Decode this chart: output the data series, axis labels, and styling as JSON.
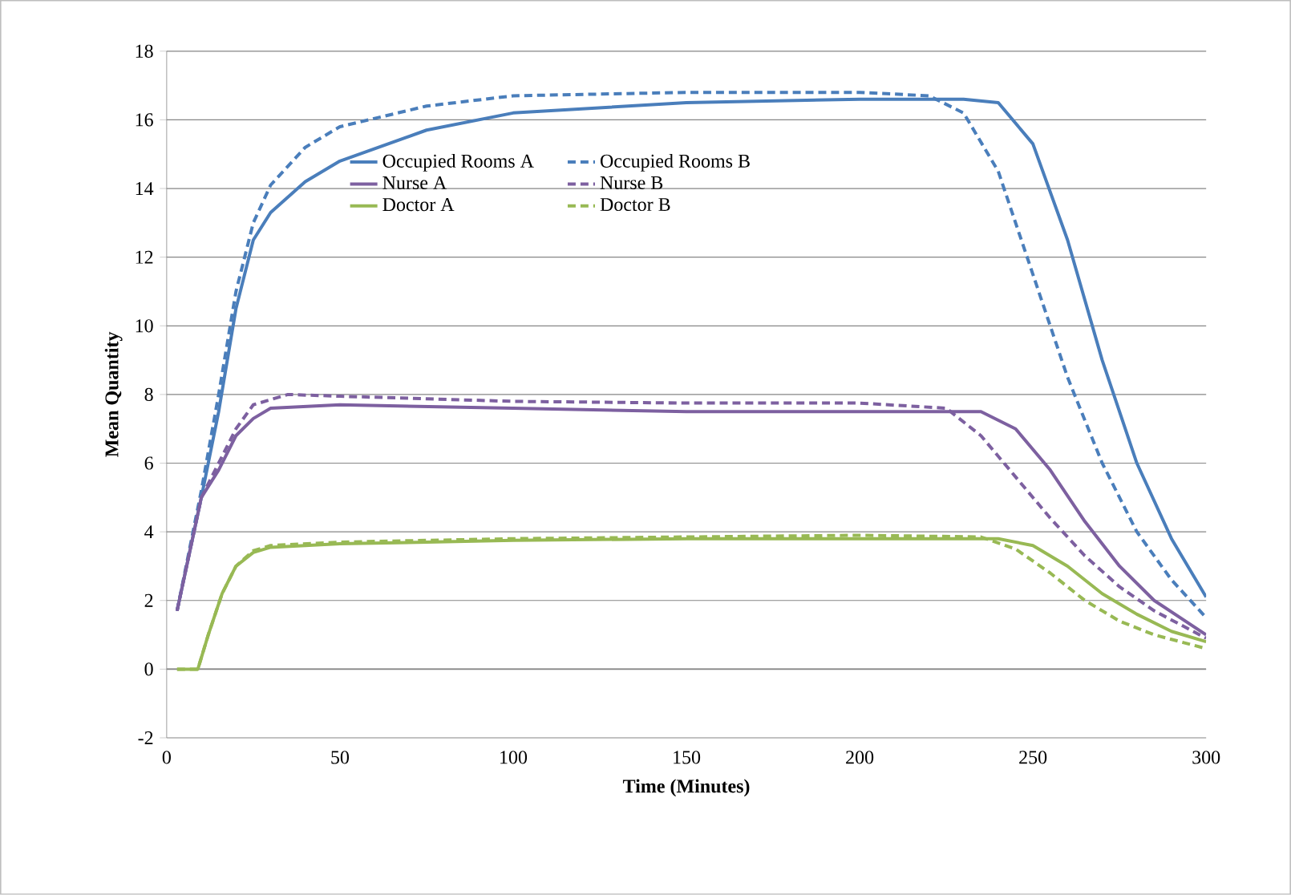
{
  "chart_data": {
    "type": "line",
    "xlabel": "Time (Minutes)",
    "ylabel": "Mean Quantity",
    "xlim": [
      0,
      300
    ],
    "xticks": [
      0,
      50,
      100,
      150,
      200,
      250,
      300
    ],
    "ylim": [
      -2,
      18
    ],
    "yticks": [
      -2,
      0,
      2,
      4,
      6,
      8,
      10,
      12,
      14,
      16,
      18
    ],
    "grid": "y",
    "legend": "top",
    "marker": "none",
    "series": [
      {
        "name": "Occupied Rooms A",
        "color": "#4a7ebb",
        "line_style": "solid",
        "x": [
          3,
          10,
          15,
          20,
          25,
          30,
          40,
          50,
          75,
          100,
          150,
          200,
          230,
          240,
          250,
          260,
          270,
          280,
          290,
          300
        ],
        "values": [
          1.7,
          5,
          7.5,
          10.5,
          12.5,
          13.3,
          14.2,
          14.8,
          15.7,
          16.2,
          16.5,
          16.6,
          16.6,
          16.5,
          15.3,
          12.5,
          9,
          6,
          3.8,
          2.1
        ]
      },
      {
        "name": "Occupied Rooms B",
        "color": "#4a7ebb",
        "line_style": "dashed",
        "x": [
          3,
          10,
          15,
          20,
          25,
          30,
          40,
          50,
          75,
          100,
          150,
          200,
          220,
          230,
          240,
          250,
          260,
          270,
          280,
          290,
          300
        ],
        "values": [
          1.7,
          5.2,
          8,
          11,
          13,
          14.1,
          15.2,
          15.8,
          16.4,
          16.7,
          16.8,
          16.8,
          16.7,
          16.2,
          14.5,
          11.5,
          8.5,
          6,
          4,
          2.6,
          1.5
        ]
      },
      {
        "name": "Nurse A",
        "color": "#7d60a0",
        "line_style": "solid",
        "x": [
          3,
          10,
          15,
          20,
          25,
          30,
          50,
          100,
          150,
          200,
          235,
          245,
          255,
          265,
          275,
          285,
          300
        ],
        "values": [
          1.7,
          5,
          5.8,
          6.8,
          7.3,
          7.6,
          7.7,
          7.6,
          7.5,
          7.5,
          7.5,
          7,
          5.8,
          4.3,
          3,
          2,
          1.0
        ]
      },
      {
        "name": "Nurse B",
        "color": "#7d60a0",
        "line_style": "dashed",
        "x": [
          3,
          10,
          15,
          20,
          25,
          35,
          50,
          100,
          150,
          200,
          225,
          235,
          245,
          255,
          265,
          275,
          285,
          300
        ],
        "values": [
          1.7,
          5,
          6,
          7,
          7.7,
          8.0,
          7.95,
          7.8,
          7.75,
          7.75,
          7.6,
          6.8,
          5.6,
          4.4,
          3.3,
          2.4,
          1.7,
          0.9
        ]
      },
      {
        "name": "Doctor A",
        "color": "#98b954",
        "line_style": "solid",
        "x": [
          3,
          9,
          12,
          16,
          20,
          25,
          30,
          50,
          100,
          150,
          200,
          240,
          250,
          260,
          270,
          280,
          290,
          300
        ],
        "values": [
          0,
          0,
          1,
          2.2,
          3,
          3.4,
          3.55,
          3.65,
          3.75,
          3.8,
          3.8,
          3.8,
          3.6,
          3.0,
          2.2,
          1.6,
          1.1,
          0.8
        ]
      },
      {
        "name": "Doctor B",
        "color": "#98b954",
        "line_style": "dashed",
        "x": [
          3,
          9,
          12,
          16,
          20,
          25,
          30,
          50,
          100,
          150,
          200,
          235,
          245,
          255,
          265,
          275,
          285,
          300
        ],
        "values": [
          0,
          0,
          1,
          2.2,
          3,
          3.45,
          3.6,
          3.7,
          3.8,
          3.85,
          3.9,
          3.85,
          3.5,
          2.8,
          2.0,
          1.4,
          1.0,
          0.6
        ]
      }
    ]
  }
}
